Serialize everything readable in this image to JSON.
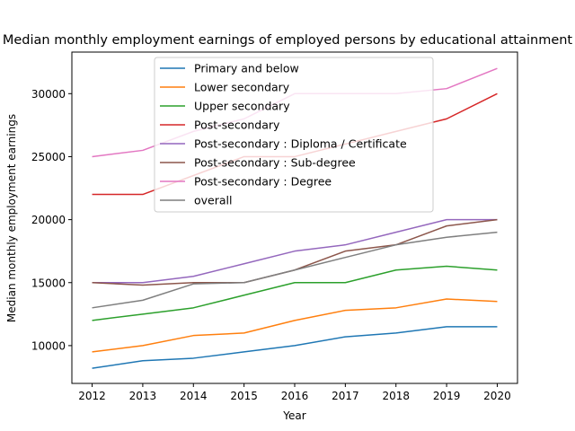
{
  "chart_data": {
    "type": "line",
    "title": "Median monthly employment earnings of employed persons by educational attainment",
    "xlabel": "Year",
    "ylabel": "Median monthly employment earnings",
    "x": [
      2012,
      2013,
      2014,
      2015,
      2016,
      2017,
      2018,
      2019,
      2020
    ],
    "xlim": [
      2011.6,
      2020.4
    ],
    "ylim": [
      7000,
      33300
    ],
    "yticks": [
      10000,
      15000,
      20000,
      25000,
      30000
    ],
    "grid": false,
    "legend_position": "upper center",
    "series": [
      {
        "name": "Primary and below",
        "color": "#1f77b4",
        "values": [
          8200,
          8800,
          9000,
          9500,
          10000,
          10700,
          11000,
          11500,
          11500
        ]
      },
      {
        "name": "Lower secondary",
        "color": "#ff7f0e",
        "values": [
          9500,
          10000,
          10800,
          11000,
          12000,
          12800,
          13000,
          13700,
          13500
        ]
      },
      {
        "name": "Upper secondary",
        "color": "#2ca02c",
        "values": [
          12000,
          12500,
          13000,
          14000,
          15000,
          15000,
          16000,
          16300,
          16000
        ]
      },
      {
        "name": "Post-secondary",
        "color": "#d62728",
        "values": [
          22000,
          22000,
          23500,
          25000,
          25000,
          26000,
          27000,
          28000,
          30000
        ]
      },
      {
        "name": "Post-secondary : Diploma / Certificate",
        "color": "#9467bd",
        "values": [
          15000,
          15000,
          15500,
          16500,
          17500,
          18000,
          19000,
          20000,
          20000
        ]
      },
      {
        "name": "Post-secondary : Sub-degree",
        "color": "#8c564b",
        "values": [
          15000,
          14800,
          15000,
          15000,
          16000,
          17500,
          18000,
          19500,
          20000
        ]
      },
      {
        "name": "Post-secondary : Degree",
        "color": "#e377c2",
        "values": [
          25000,
          25500,
          27000,
          28000,
          30000,
          30000,
          30000,
          30400,
          32000
        ]
      },
      {
        "name": "overall",
        "color": "#7f7f7f",
        "values": [
          13000,
          13600,
          14900,
          15000,
          16000,
          17000,
          18000,
          18600,
          19000
        ]
      }
    ]
  }
}
